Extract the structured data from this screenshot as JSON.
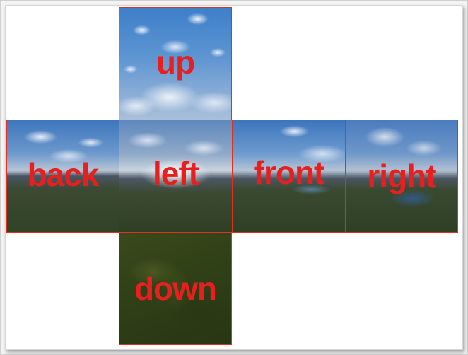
{
  "diagram": {
    "type": "cubemap-cross-layout",
    "label_color": "#e81f1f",
    "border_color": "#e0301e",
    "faces": {
      "up": {
        "label": "up"
      },
      "back": {
        "label": "back"
      },
      "left": {
        "label": "left"
      },
      "front": {
        "label": "front"
      },
      "right": {
        "label": "right"
      },
      "down": {
        "label": "down"
      }
    }
  }
}
